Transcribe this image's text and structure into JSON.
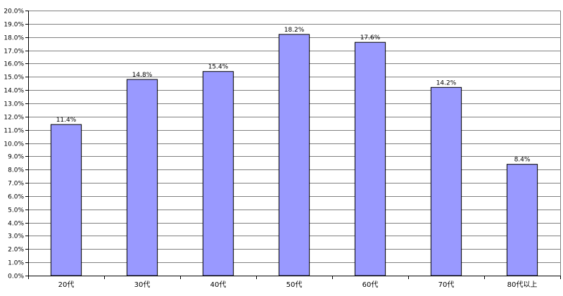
{
  "chart_data": {
    "type": "bar",
    "title": "",
    "xlabel": "",
    "ylabel": "",
    "categories": [
      "20代",
      "30代",
      "40代",
      "50代",
      "60代",
      "70代",
      "80代以上"
    ],
    "values": [
      11.4,
      14.8,
      15.4,
      18.2,
      17.6,
      14.2,
      8.4
    ],
    "data_labels": [
      "11.4%",
      "14.8%",
      "15.4%",
      "18.2%",
      "17.6%",
      "14.2%",
      "8.4%"
    ],
    "ylim": [
      0,
      20
    ],
    "y_ticks": [
      "0.0%",
      "1.0%",
      "2.0%",
      "3.0%",
      "4.0%",
      "5.0%",
      "6.0%",
      "7.0%",
      "8.0%",
      "9.0%",
      "10.0%",
      "11.0%",
      "12.0%",
      "13.0%",
      "14.0%",
      "15.0%",
      "16.0%",
      "17.0%",
      "18.0%",
      "19.0%",
      "20.0%"
    ],
    "grid": true,
    "legend": "none",
    "bar_color": "#9999ff",
    "bar_edge_color": "#000000",
    "grid_color": "#808080"
  }
}
